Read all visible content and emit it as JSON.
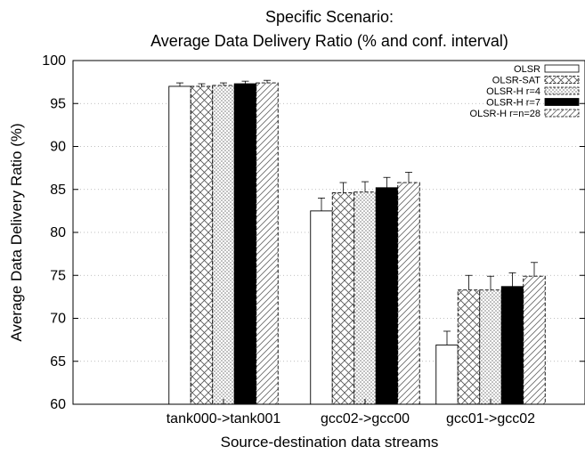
{
  "chart_data": {
    "type": "bar",
    "title": "Specific Scenario:",
    "subtitle": "Average Data Delivery Ratio (% and conf. interval)",
    "xlabel": "Source-destination data streams",
    "ylabel": "Average Data Delivery Ratio (%)",
    "ylim": [
      60,
      100
    ],
    "yticks": [
      60,
      65,
      70,
      75,
      80,
      85,
      90,
      95,
      100
    ],
    "grid": true,
    "legend_position": "top-right",
    "categories": [
      "tank000->tank001",
      "gcc02->gcc00",
      "gcc01->gcc02"
    ],
    "series": [
      {
        "name": "OLSR",
        "pattern": "white",
        "values": [
          97.0,
          82.5,
          66.9
        ],
        "errors": [
          0.4,
          1.5,
          1.6
        ]
      },
      {
        "name": "OLSR-SAT",
        "pattern": "crosshatch",
        "values": [
          97.0,
          84.6,
          73.3
        ],
        "errors": [
          0.3,
          1.2,
          1.7
        ]
      },
      {
        "name": "OLSR-H r=4",
        "pattern": "dots",
        "values": [
          97.1,
          84.7,
          73.3
        ],
        "errors": [
          0.3,
          1.2,
          1.6
        ]
      },
      {
        "name": "OLSR-H r=7",
        "pattern": "black",
        "values": [
          97.3,
          85.2,
          73.7
        ],
        "errors": [
          0.3,
          1.2,
          1.6
        ]
      },
      {
        "name": "OLSR-H r=n=28",
        "pattern": "diagonal",
        "values": [
          97.4,
          85.8,
          74.9
        ],
        "errors": [
          0.3,
          1.2,
          1.6
        ]
      }
    ]
  }
}
